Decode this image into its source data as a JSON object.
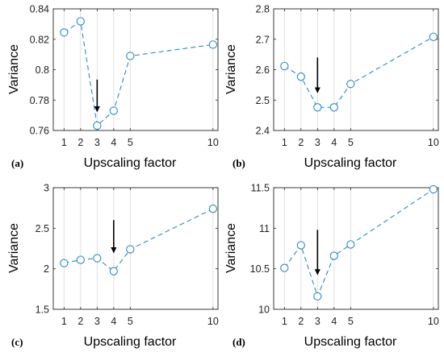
{
  "colors": {
    "series": "#2b8ac4",
    "grid": "#d9d9d9",
    "arrow": "#000000"
  },
  "chart_data": [
    {
      "type": "line",
      "panel_label": "(a)",
      "xlabel": "Upscaling factor",
      "ylabel": "Variance",
      "x": [
        1,
        2,
        3,
        4,
        5,
        10
      ],
      "values": [
        0.8245,
        0.8318,
        0.7632,
        0.773,
        0.809,
        0.8165
      ],
      "xticks": [
        1,
        2,
        3,
        4,
        5,
        10
      ],
      "xtick_labels": [
        "1",
        "2",
        "3",
        "4",
        "5",
        "10"
      ],
      "yticks": [
        0.76,
        0.78,
        0.8,
        0.82,
        0.84
      ],
      "ytick_labels": [
        "0.76",
        "0.78",
        "0.8",
        "0.82",
        "0.84"
      ],
      "xlim": [
        0.35,
        10.3
      ],
      "ylim": [
        0.76,
        0.84
      ],
      "grid": "vertical",
      "marker": "open-circle",
      "linestyle": "dashed",
      "annotation": {
        "type": "arrow-down",
        "x": 3,
        "from_y": 0.7935,
        "to_y": 0.7725
      }
    },
    {
      "type": "line",
      "panel_label": "(b)",
      "xlabel": "Upscaling factor",
      "ylabel": "Variance",
      "x": [
        1,
        2,
        3,
        4,
        5,
        10
      ],
      "values": [
        2.612,
        2.577,
        2.476,
        2.476,
        2.553,
        2.708
      ],
      "xticks": [
        1,
        2,
        3,
        4,
        5,
        10
      ],
      "xtick_labels": [
        "1",
        "2",
        "3",
        "4",
        "5",
        "10"
      ],
      "yticks": [
        2.4,
        2.5,
        2.6,
        2.7,
        2.8
      ],
      "ytick_labels": [
        "2.4",
        "2.5",
        "2.6",
        "2.7",
        "2.8"
      ],
      "xlim": [
        0.35,
        10.3
      ],
      "ylim": [
        2.4,
        2.8
      ],
      "grid": "vertical",
      "marker": "open-circle",
      "linestyle": "dashed",
      "annotation": {
        "type": "arrow-down",
        "x": 3,
        "from_y": 2.64,
        "to_y": 2.525
      }
    },
    {
      "type": "line",
      "panel_label": "(c)",
      "xlabel": "Upscaling factor",
      "ylabel": "Variance",
      "x": [
        1,
        2,
        3,
        4,
        5,
        10
      ],
      "values": [
        2.07,
        2.11,
        2.13,
        1.97,
        2.24,
        2.74
      ],
      "xticks": [
        1,
        2,
        3,
        4,
        5,
        10
      ],
      "xtick_labels": [
        "1",
        "2",
        "3",
        "4",
        "5",
        "10"
      ],
      "yticks": [
        1.5,
        2,
        2.5,
        3
      ],
      "ytick_labels": [
        "1.5",
        "2",
        "2.5",
        "3"
      ],
      "xlim": [
        0.35,
        10.3
      ],
      "ylim": [
        1.5,
        3
      ],
      "grid": "vertical",
      "marker": "open-circle",
      "linestyle": "dashed",
      "annotation": {
        "type": "arrow-down",
        "x": 4,
        "from_y": 2.6,
        "to_y": 2.2
      }
    },
    {
      "type": "line",
      "panel_label": "(d)",
      "xlabel": "Upscaling factor",
      "ylabel": "Variance",
      "x": [
        1,
        2,
        3,
        4,
        5,
        10
      ],
      "values": [
        10.51,
        10.79,
        10.16,
        10.66,
        10.8,
        11.48
      ],
      "xticks": [
        1,
        2,
        3,
        4,
        5,
        10
      ],
      "xtick_labels": [
        "1",
        "2",
        "3",
        "4",
        "5",
        "10"
      ],
      "yticks": [
        10,
        10.5,
        11,
        11.5
      ],
      "ytick_labels": [
        "10",
        "10.5",
        "11",
        "11.5"
      ],
      "xlim": [
        0.35,
        10.3
      ],
      "ylim": [
        10,
        11.5
      ],
      "grid": "vertical",
      "marker": "open-circle",
      "linestyle": "dashed",
      "annotation": {
        "type": "arrow-down",
        "x": 3,
        "from_y": 10.98,
        "to_y": 10.43
      }
    }
  ]
}
